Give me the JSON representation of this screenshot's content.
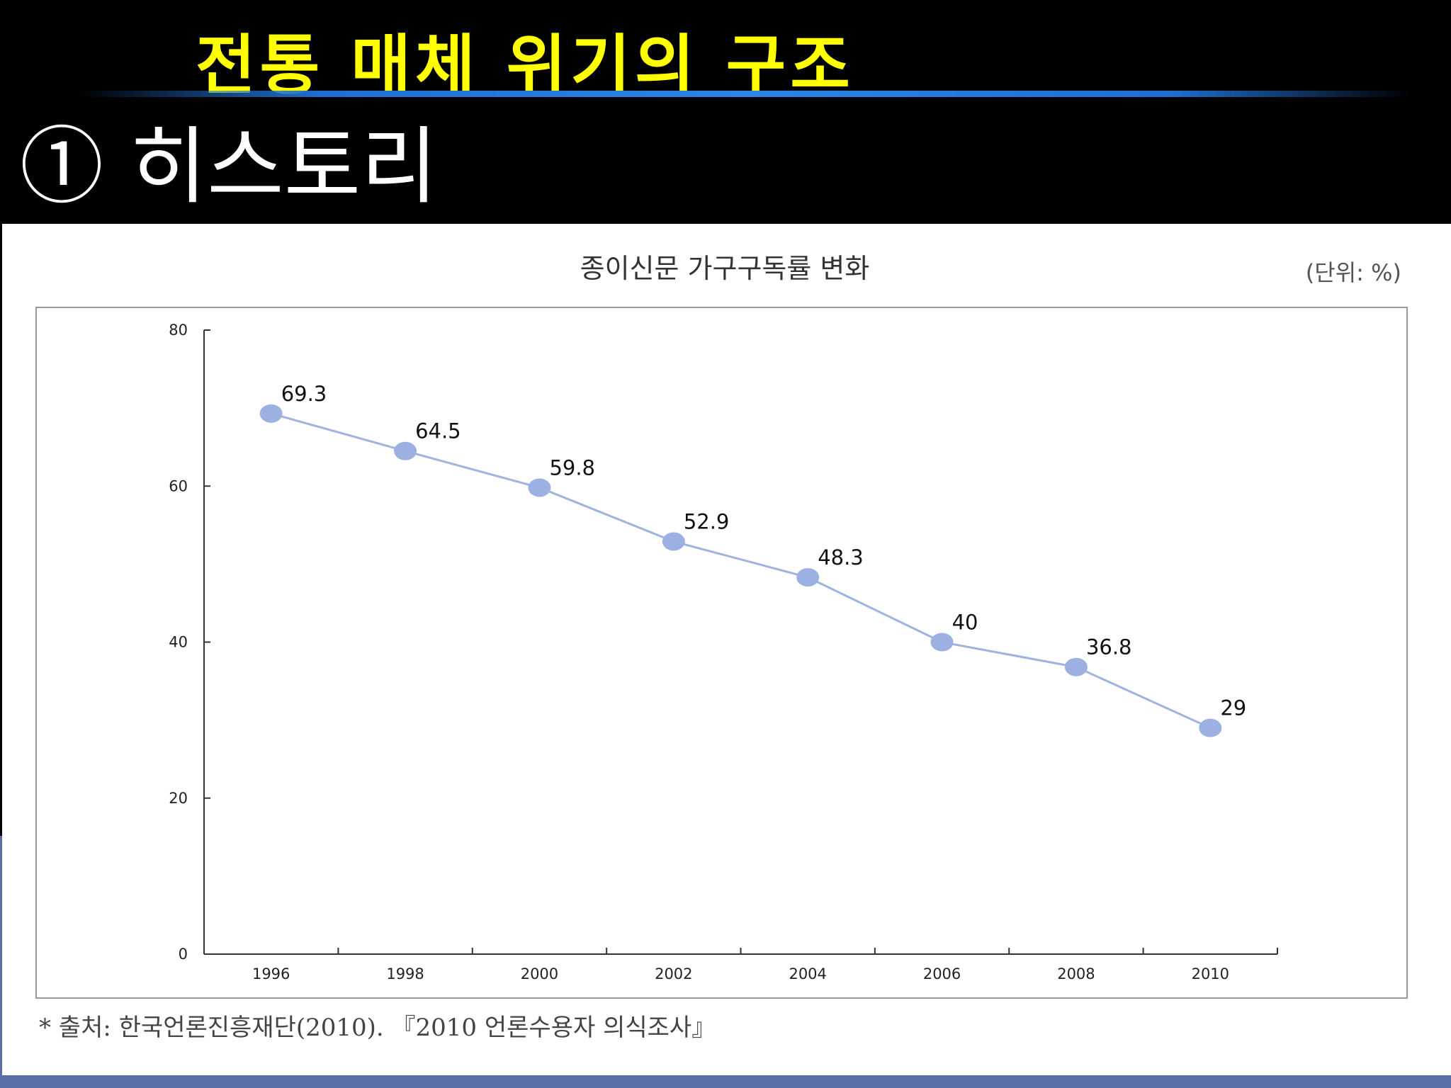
{
  "slide": {
    "title": "전통 매체 위기의 구조",
    "heading": "① 히스토리"
  },
  "colors": {
    "title": "#ffff00",
    "line": "#9fb3e0",
    "marker": "#9db0e2",
    "accent_bar": "#2a86e8"
  },
  "chart_data": {
    "type": "line",
    "title": "종이신문 가구구독률 변화",
    "unit_note": "(단위: %)",
    "x": [
      "1996",
      "1998",
      "2000",
      "2002",
      "2004",
      "2006",
      "2008",
      "2010"
    ],
    "series": [
      {
        "values": [
          69.3,
          64.5,
          59.8,
          52.9,
          48.3,
          40,
          36.8,
          29
        ],
        "labels": [
          "69.3",
          "64.5",
          "59.8",
          "52.9",
          "48.3",
          "40",
          "36.8",
          "29"
        ]
      }
    ],
    "ylim": [
      0,
      80
    ],
    "yticks": [
      "0",
      "20",
      "40",
      "60",
      "80"
    ],
    "grid": false,
    "source": "* 출처: 한국언론진흥재단(2010). 『2010 언론수용자 의식조사』"
  }
}
